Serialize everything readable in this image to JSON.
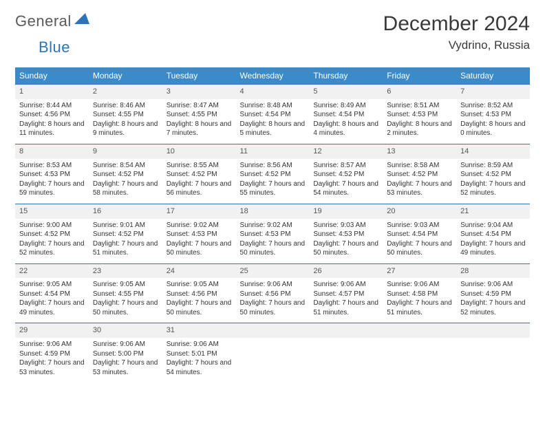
{
  "logo": {
    "word1": "General",
    "word2": "Blue",
    "triangle_color": "#2d74b8"
  },
  "title": "December 2024",
  "location": "Vydrino, Russia",
  "colors": {
    "header_bg": "#3b8bca",
    "header_text": "#ffffff",
    "row_divider": "#2d74b8",
    "daynum_bg": "#f1f1f1",
    "daynum_text": "#555555",
    "body_text": "#333333",
    "title_text": "#3a3a3a"
  },
  "typography": {
    "title_fontsize": 30,
    "location_fontsize": 17,
    "dayheader_fontsize": 12,
    "daynum_fontsize": 11,
    "cell_fontsize": 10
  },
  "day_headers": [
    "Sunday",
    "Monday",
    "Tuesday",
    "Wednesday",
    "Thursday",
    "Friday",
    "Saturday"
  ],
  "weeks": [
    [
      {
        "n": "1",
        "sunrise": "Sunrise: 8:44 AM",
        "sunset": "Sunset: 4:56 PM",
        "day": "Daylight: 8 hours and 11 minutes."
      },
      {
        "n": "2",
        "sunrise": "Sunrise: 8:46 AM",
        "sunset": "Sunset: 4:55 PM",
        "day": "Daylight: 8 hours and 9 minutes."
      },
      {
        "n": "3",
        "sunrise": "Sunrise: 8:47 AM",
        "sunset": "Sunset: 4:55 PM",
        "day": "Daylight: 8 hours and 7 minutes."
      },
      {
        "n": "4",
        "sunrise": "Sunrise: 8:48 AM",
        "sunset": "Sunset: 4:54 PM",
        "day": "Daylight: 8 hours and 5 minutes."
      },
      {
        "n": "5",
        "sunrise": "Sunrise: 8:49 AM",
        "sunset": "Sunset: 4:54 PM",
        "day": "Daylight: 8 hours and 4 minutes."
      },
      {
        "n": "6",
        "sunrise": "Sunrise: 8:51 AM",
        "sunset": "Sunset: 4:53 PM",
        "day": "Daylight: 8 hours and 2 minutes."
      },
      {
        "n": "7",
        "sunrise": "Sunrise: 8:52 AM",
        "sunset": "Sunset: 4:53 PM",
        "day": "Daylight: 8 hours and 0 minutes."
      }
    ],
    [
      {
        "n": "8",
        "sunrise": "Sunrise: 8:53 AM",
        "sunset": "Sunset: 4:53 PM",
        "day": "Daylight: 7 hours and 59 minutes."
      },
      {
        "n": "9",
        "sunrise": "Sunrise: 8:54 AM",
        "sunset": "Sunset: 4:52 PM",
        "day": "Daylight: 7 hours and 58 minutes."
      },
      {
        "n": "10",
        "sunrise": "Sunrise: 8:55 AM",
        "sunset": "Sunset: 4:52 PM",
        "day": "Daylight: 7 hours and 56 minutes."
      },
      {
        "n": "11",
        "sunrise": "Sunrise: 8:56 AM",
        "sunset": "Sunset: 4:52 PM",
        "day": "Daylight: 7 hours and 55 minutes."
      },
      {
        "n": "12",
        "sunrise": "Sunrise: 8:57 AM",
        "sunset": "Sunset: 4:52 PM",
        "day": "Daylight: 7 hours and 54 minutes."
      },
      {
        "n": "13",
        "sunrise": "Sunrise: 8:58 AM",
        "sunset": "Sunset: 4:52 PM",
        "day": "Daylight: 7 hours and 53 minutes."
      },
      {
        "n": "14",
        "sunrise": "Sunrise: 8:59 AM",
        "sunset": "Sunset: 4:52 PM",
        "day": "Daylight: 7 hours and 52 minutes."
      }
    ],
    [
      {
        "n": "15",
        "sunrise": "Sunrise: 9:00 AM",
        "sunset": "Sunset: 4:52 PM",
        "day": "Daylight: 7 hours and 52 minutes."
      },
      {
        "n": "16",
        "sunrise": "Sunrise: 9:01 AM",
        "sunset": "Sunset: 4:52 PM",
        "day": "Daylight: 7 hours and 51 minutes."
      },
      {
        "n": "17",
        "sunrise": "Sunrise: 9:02 AM",
        "sunset": "Sunset: 4:53 PM",
        "day": "Daylight: 7 hours and 50 minutes."
      },
      {
        "n": "18",
        "sunrise": "Sunrise: 9:02 AM",
        "sunset": "Sunset: 4:53 PM",
        "day": "Daylight: 7 hours and 50 minutes."
      },
      {
        "n": "19",
        "sunrise": "Sunrise: 9:03 AM",
        "sunset": "Sunset: 4:53 PM",
        "day": "Daylight: 7 hours and 50 minutes."
      },
      {
        "n": "20",
        "sunrise": "Sunrise: 9:03 AM",
        "sunset": "Sunset: 4:54 PM",
        "day": "Daylight: 7 hours and 50 minutes."
      },
      {
        "n": "21",
        "sunrise": "Sunrise: 9:04 AM",
        "sunset": "Sunset: 4:54 PM",
        "day": "Daylight: 7 hours and 49 minutes."
      }
    ],
    [
      {
        "n": "22",
        "sunrise": "Sunrise: 9:05 AM",
        "sunset": "Sunset: 4:54 PM",
        "day": "Daylight: 7 hours and 49 minutes."
      },
      {
        "n": "23",
        "sunrise": "Sunrise: 9:05 AM",
        "sunset": "Sunset: 4:55 PM",
        "day": "Daylight: 7 hours and 50 minutes."
      },
      {
        "n": "24",
        "sunrise": "Sunrise: 9:05 AM",
        "sunset": "Sunset: 4:56 PM",
        "day": "Daylight: 7 hours and 50 minutes."
      },
      {
        "n": "25",
        "sunrise": "Sunrise: 9:06 AM",
        "sunset": "Sunset: 4:56 PM",
        "day": "Daylight: 7 hours and 50 minutes."
      },
      {
        "n": "26",
        "sunrise": "Sunrise: 9:06 AM",
        "sunset": "Sunset: 4:57 PM",
        "day": "Daylight: 7 hours and 51 minutes."
      },
      {
        "n": "27",
        "sunrise": "Sunrise: 9:06 AM",
        "sunset": "Sunset: 4:58 PM",
        "day": "Daylight: 7 hours and 51 minutes."
      },
      {
        "n": "28",
        "sunrise": "Sunrise: 9:06 AM",
        "sunset": "Sunset: 4:59 PM",
        "day": "Daylight: 7 hours and 52 minutes."
      }
    ],
    [
      {
        "n": "29",
        "sunrise": "Sunrise: 9:06 AM",
        "sunset": "Sunset: 4:59 PM",
        "day": "Daylight: 7 hours and 53 minutes."
      },
      {
        "n": "30",
        "sunrise": "Sunrise: 9:06 AM",
        "sunset": "Sunset: 5:00 PM",
        "day": "Daylight: 7 hours and 53 minutes."
      },
      {
        "n": "31",
        "sunrise": "Sunrise: 9:06 AM",
        "sunset": "Sunset: 5:01 PM",
        "day": "Daylight: 7 hours and 54 minutes."
      },
      null,
      null,
      null,
      null
    ]
  ]
}
